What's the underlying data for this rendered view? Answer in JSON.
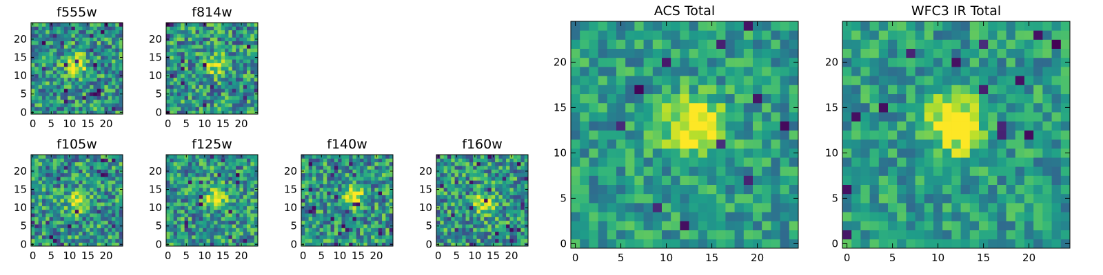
{
  "colormap": "viridis",
  "chart_data": [
    {
      "type": "heatmap",
      "title": "f555w",
      "xlim": [
        0,
        24
      ],
      "ylim": [
        0,
        24
      ],
      "x_ticks": [
        "0",
        "5",
        "10",
        "15",
        "20"
      ],
      "y_ticks": [
        "0",
        "5",
        "10",
        "15",
        "20"
      ],
      "source_center": [
        12,
        13
      ],
      "description": "noisy 25x25 pixel cutout, faint bright source near center"
    },
    {
      "type": "heatmap",
      "title": "f814w",
      "xlim": [
        0,
        24
      ],
      "ylim": [
        0,
        24
      ],
      "x_ticks": [
        "0",
        "5",
        "10",
        "15",
        "20"
      ],
      "y_ticks": [
        "0",
        "5",
        "10",
        "15",
        "20"
      ],
      "source_center": [
        13,
        13
      ],
      "description": "noisy 25x25 pixel cutout, compact bright source near center"
    },
    {
      "type": "heatmap",
      "title": "f105w",
      "xlim": [
        0,
        24
      ],
      "ylim": [
        0,
        24
      ],
      "x_ticks": [
        "0",
        "5",
        "10",
        "15",
        "20"
      ],
      "y_ticks": [
        "0",
        "5",
        "10",
        "15",
        "20"
      ],
      "source_center": [
        12,
        12
      ],
      "description": "noisy 25x25 pixel cutout, bright source near center"
    },
    {
      "type": "heatmap",
      "title": "f125w",
      "xlim": [
        0,
        24
      ],
      "ylim": [
        0,
        24
      ],
      "x_ticks": [
        "0",
        "5",
        "10",
        "15",
        "20"
      ],
      "y_ticks": [
        "0",
        "5",
        "10",
        "15",
        "20"
      ],
      "source_center": [
        13,
        13
      ],
      "description": "noisy 25x25 pixel cutout, bright source near center"
    },
    {
      "type": "heatmap",
      "title": "f140w",
      "xlim": [
        0,
        24
      ],
      "ylim": [
        0,
        24
      ],
      "x_ticks": [
        "0",
        "5",
        "10",
        "15",
        "20"
      ],
      "y_ticks": [
        "0",
        "5",
        "10",
        "15",
        "20"
      ],
      "source_center": [
        14,
        13
      ],
      "description": "noisy 25x25 pixel cutout, faint source near center"
    },
    {
      "type": "heatmap",
      "title": "f160w",
      "xlim": [
        0,
        24
      ],
      "ylim": [
        0,
        24
      ],
      "x_ticks": [
        "0",
        "5",
        "10",
        "15",
        "20"
      ],
      "y_ticks": [
        "0",
        "5",
        "10",
        "15",
        "20"
      ],
      "source_center": [
        13,
        11
      ],
      "description": "noisy 25x25 pixel cutout, extended bright source near center"
    },
    {
      "type": "heatmap",
      "title": "ACS Total",
      "xlim": [
        0,
        24
      ],
      "ylim": [
        0,
        24
      ],
      "x_ticks": [
        "0",
        "5",
        "10",
        "15",
        "20"
      ],
      "y_ticks": [
        "0",
        "5",
        "10",
        "15",
        "20"
      ],
      "source_center": [
        13,
        13
      ],
      "description": "25x25 pixel stacked image, bright source near center"
    },
    {
      "type": "heatmap",
      "title": "WFC3 IR Total",
      "xlim": [
        0,
        24
      ],
      "ylim": [
        0,
        24
      ],
      "x_ticks": [
        "0",
        "5",
        "10",
        "15",
        "20"
      ],
      "y_ticks": [
        "0",
        "5",
        "10",
        "15",
        "20"
      ],
      "source_center": [
        12,
        13
      ],
      "description": "25x25 pixel stacked image, extended bright source near center"
    }
  ]
}
